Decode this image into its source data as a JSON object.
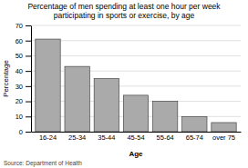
{
  "chart_data": {
    "type": "bar",
    "title": "Percentage of men spending at least one hour per week\nparticipating in sports or exercise, by age",
    "categories": [
      "16-24",
      "25-34",
      "35-44",
      "45-54",
      "55-64",
      "65-74",
      "over 75"
    ],
    "values": [
      61,
      43,
      35,
      24,
      20,
      10,
      6
    ],
    "color": "#aaaaaa",
    "xlabel": "Age",
    "ylabel": "Percentage",
    "ylim": [
      0,
      70
    ],
    "yticks": [
      0,
      10,
      20,
      30,
      40,
      50,
      60,
      70
    ],
    "grid": true,
    "annotations": [
      "Source: Department of Health"
    ]
  }
}
